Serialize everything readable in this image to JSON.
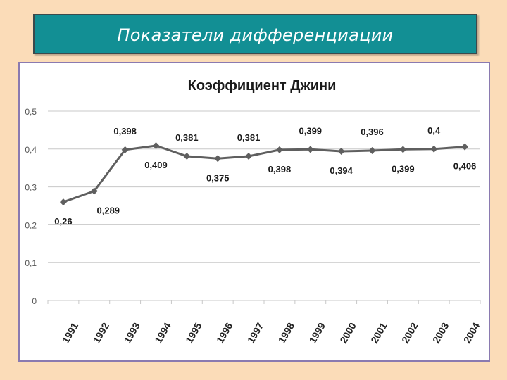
{
  "slide": {
    "title": "Показатели дифференциации"
  },
  "colors": {
    "background": "#fbdcb8",
    "header_fill": "#128f94",
    "header_border": "#3b4a4c",
    "frame_border": "#8a7ab0",
    "series_line": "#5f5f5f",
    "grid": "#c8c8c8"
  },
  "chart_data": {
    "type": "line",
    "title": "Коэффициент Джини",
    "xlabel": "",
    "ylabel": "",
    "grid": true,
    "legend": "none",
    "ylim": [
      0,
      0.5
    ],
    "y_ticks": [
      "0",
      "0,1",
      "0,2",
      "0,3",
      "0,4",
      "0,5"
    ],
    "categories": [
      "1991",
      "1992",
      "1993",
      "1994",
      "1995",
      "1996",
      "1997",
      "1998",
      "1999",
      "2000",
      "2001",
      "2002",
      "2003",
      "2004"
    ],
    "series": [
      {
        "values": [
          0.26,
          0.289,
          0.398,
          0.409,
          0.381,
          0.375,
          0.381,
          0.398,
          0.399,
          0.394,
          0.396,
          0.399,
          0.4,
          0.406
        ],
        "data_labels": [
          "0,26",
          "0,289",
          "0,398",
          "0,409",
          "0,381",
          "0,375",
          "0,381",
          "0,398",
          "0,399",
          "0,394",
          "0,396",
          "0,399",
          "0,4",
          "0,406"
        ]
      }
    ]
  }
}
